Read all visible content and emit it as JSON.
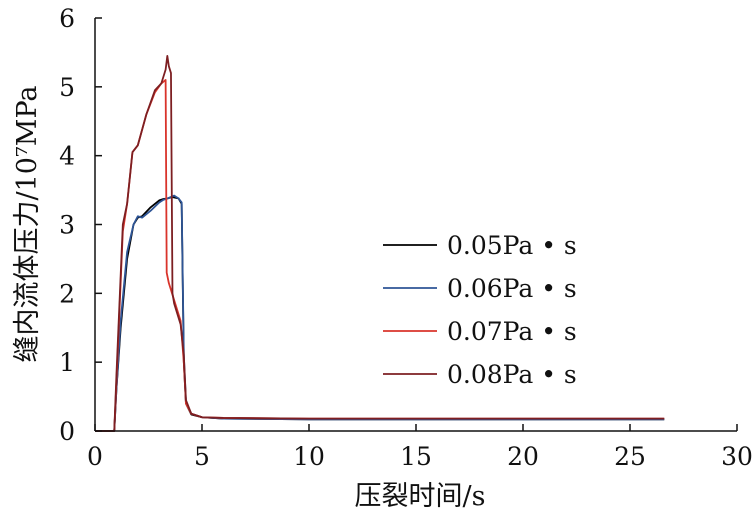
{
  "chart_data": {
    "type": "line",
    "title": "",
    "xlabel": "压裂时间/s",
    "ylabel": "缝内流体压力/10⁷MPa",
    "xlim": [
      0,
      30
    ],
    "ylim": [
      0,
      6
    ],
    "xticks": [
      0,
      5,
      10,
      15,
      20,
      25,
      30
    ],
    "yticks": [
      0,
      1,
      2,
      3,
      4,
      5,
      6
    ],
    "grid": false,
    "legend_position": "center-right",
    "series": [
      {
        "name": "0.05Pa • s",
        "color": "#000000",
        "x": [
          0,
          0.9,
          1.0,
          1.2,
          1.5,
          1.8,
          2.0,
          2.2,
          2.6,
          3.0,
          3.2,
          3.4,
          3.6,
          3.9,
          4.05,
          4.15,
          4.25,
          4.5,
          5.0,
          6.0,
          10.0,
          15.0,
          20.0,
          26.6
        ],
        "y": [
          0,
          0,
          0.6,
          1.5,
          2.5,
          3.0,
          3.1,
          3.12,
          3.25,
          3.35,
          3.37,
          3.38,
          3.4,
          3.38,
          3.3,
          1.0,
          0.4,
          0.24,
          0.2,
          0.18,
          0.17,
          0.17,
          0.17,
          0.17
        ]
      },
      {
        "name": "0.06Pa • s",
        "color": "#2e5596",
        "x": [
          0,
          0.9,
          1.0,
          1.2,
          1.5,
          1.8,
          2.0,
          2.2,
          2.6,
          3.0,
          3.2,
          3.4,
          3.7,
          3.9,
          4.05,
          4.15,
          4.25,
          4.5,
          5.0,
          6.0,
          10.0,
          15.0,
          20.0,
          26.6
        ],
        "y": [
          0,
          0,
          0.6,
          1.6,
          2.6,
          3.0,
          3.12,
          3.1,
          3.2,
          3.32,
          3.36,
          3.38,
          3.42,
          3.38,
          3.32,
          1.1,
          0.42,
          0.25,
          0.2,
          0.18,
          0.17,
          0.17,
          0.17,
          0.17
        ]
      },
      {
        "name": "0.07Pa • s",
        "color": "#d9342b",
        "x": [
          0,
          0.9,
          1.0,
          1.3,
          1.5,
          1.75,
          2.0,
          2.4,
          2.8,
          3.1,
          3.3,
          3.35,
          3.45,
          3.7,
          4.0,
          4.15,
          4.25,
          4.5,
          5.0,
          6.0,
          10.0,
          15.0,
          20.0,
          26.6
        ],
        "y": [
          0,
          0,
          0.7,
          2.9,
          3.3,
          4.05,
          4.15,
          4.6,
          4.92,
          5.05,
          5.1,
          2.3,
          2.15,
          1.9,
          1.6,
          1.0,
          0.4,
          0.25,
          0.2,
          0.19,
          0.18,
          0.18,
          0.18,
          0.18
        ]
      },
      {
        "name": "0.08Pa • s",
        "color": "#7d1f22",
        "x": [
          0,
          0.9,
          1.0,
          1.3,
          1.5,
          1.75,
          2.0,
          2.4,
          2.8,
          3.1,
          3.3,
          3.38,
          3.45,
          3.55,
          3.62,
          3.7,
          4.0,
          4.15,
          4.25,
          4.5,
          5.0,
          6.0,
          10.0,
          15.0,
          20.0,
          26.6
        ],
        "y": [
          0,
          0,
          0.8,
          3.0,
          3.3,
          4.05,
          4.15,
          4.6,
          4.95,
          5.05,
          5.25,
          5.45,
          5.3,
          5.2,
          2.0,
          1.85,
          1.55,
          1.1,
          0.45,
          0.25,
          0.2,
          0.19,
          0.18,
          0.18,
          0.18,
          0.18
        ]
      }
    ]
  }
}
